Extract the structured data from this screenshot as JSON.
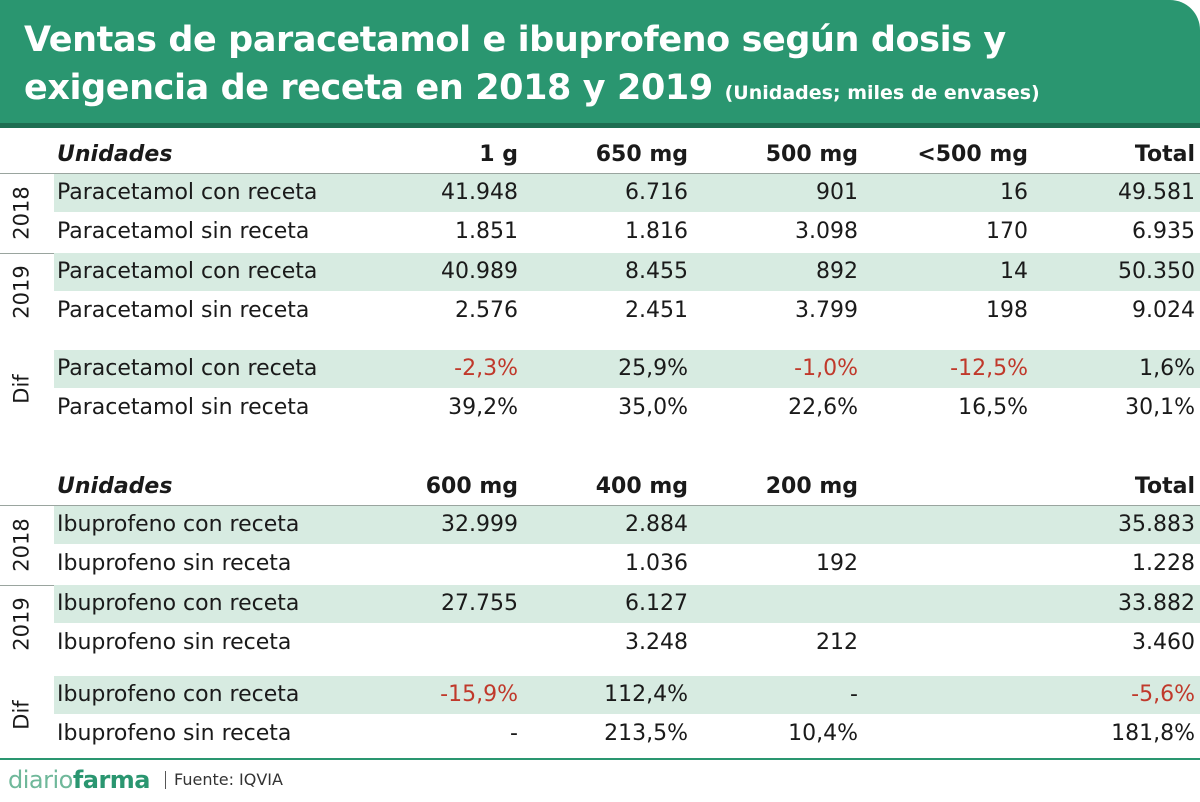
{
  "title": "Ventas de paracetamol e ibuprofeno según dosis y exigencia de receta en 2018 y 2019",
  "subtitle": "(Unidades; miles de envases)",
  "colors": {
    "header_bg": "#2a9670",
    "shade_row": "#d7ebe1",
    "negative": "#c0392b"
  },
  "chart_data": [
    {
      "type": "table",
      "header": [
        "Unidades",
        "1 g",
        "650 mg",
        "500 mg",
        "<500 mg",
        "Total"
      ],
      "groups": [
        {
          "label": "2018",
          "rows": [
            {
              "name": "Paracetamol con receta",
              "values": [
                "41.948",
                "6.716",
                "901",
                "16",
                "49.581"
              ]
            },
            {
              "name": "Paracetamol sin receta",
              "values": [
                "1.851",
                "1.816",
                "3.098",
                "170",
                "6.935"
              ]
            }
          ]
        },
        {
          "label": "2019",
          "rows": [
            {
              "name": "Paracetamol con receta",
              "values": [
                "40.989",
                "8.455",
                "892",
                "14",
                "50.350"
              ]
            },
            {
              "name": "Paracetamol sin receta",
              "values": [
                "2.576",
                "2.451",
                "3.799",
                "198",
                "9.024"
              ]
            }
          ]
        },
        {
          "label": "Dif",
          "rows": [
            {
              "name": "Paracetamol con receta",
              "values": [
                "-2,3%",
                "25,9%",
                "-1,0%",
                "-12,5%",
                "1,6%"
              ]
            },
            {
              "name": "Paracetamol sin receta",
              "values": [
                "39,2%",
                "35,0%",
                "22,6%",
                "16,5%",
                "30,1%"
              ]
            }
          ]
        }
      ]
    },
    {
      "type": "table",
      "header": [
        "Unidades",
        "600 mg",
        "400 mg",
        "200 mg",
        "",
        "Total"
      ],
      "groups": [
        {
          "label": "2018",
          "rows": [
            {
              "name": "Ibuprofeno con receta",
              "values": [
                "32.999",
                "2.884",
                "",
                "",
                "35.883"
              ]
            },
            {
              "name": "Ibuprofeno sin receta",
              "values": [
                "",
                "1.036",
                "192",
                "",
                "1.228"
              ]
            }
          ]
        },
        {
          "label": "2019",
          "rows": [
            {
              "name": "Ibuprofeno con receta",
              "values": [
                "27.755",
                "6.127",
                "",
                "",
                "33.882"
              ]
            },
            {
              "name": "Ibuprofeno sin receta",
              "values": [
                "",
                "3.248",
                "212",
                "",
                "3.460"
              ]
            }
          ]
        },
        {
          "label": "Dif",
          "rows": [
            {
              "name": "Ibuprofeno con receta",
              "values": [
                "-15,9%",
                "112,4%",
                "-",
                "",
                "-5,6%"
              ]
            },
            {
              "name": "Ibuprofeno sin receta",
              "values": [
                "-",
                "213,5%",
                "10,4%",
                "",
                "181,8%"
              ]
            }
          ]
        }
      ]
    }
  ],
  "footer": {
    "logo_part1": "diario",
    "logo_part2": "farma",
    "source": "Fuente: IQVIA"
  }
}
